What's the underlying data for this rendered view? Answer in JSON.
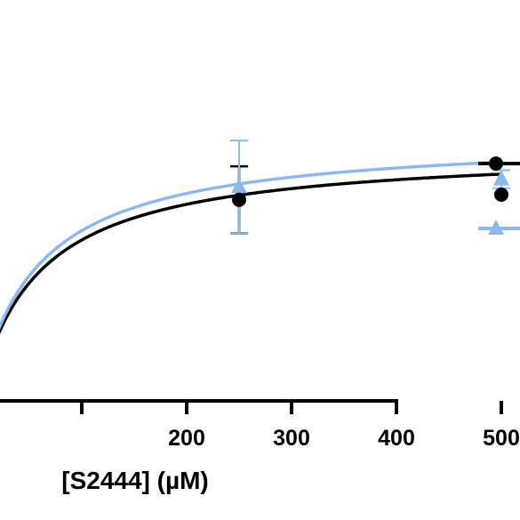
{
  "chart_data": {
    "type": "scatter",
    "xlabel": "[S2444] (µM)",
    "ylabel": "",
    "title": "",
    "xlim": [
      -80,
      520
    ],
    "ylim": [
      0,
      1.5
    ],
    "x_ticks": [
      {
        "value": 100,
        "label": ""
      },
      {
        "value": 200,
        "label": "200"
      },
      {
        "value": 300,
        "label": "300"
      },
      {
        "value": 400,
        "label": "400"
      },
      {
        "value": 500,
        "label": "500"
      }
    ],
    "fit": {
      "vmax": 1.0,
      "km": 80
    },
    "series": [
      {
        "marker": "circle",
        "color": "#000000",
        "points": [
          {
            "x": 250,
            "y": 0.78,
            "err": 0.13
          },
          {
            "x": 500,
            "y": 0.8,
            "err": 0
          }
        ],
        "fit": {
          "vmax": 0.98,
          "km": 57
        }
      },
      {
        "marker": "triangle",
        "color": "#8cb8ec",
        "points": [
          {
            "x": 250,
            "y": 0.83,
            "err": 0.18
          },
          {
            "x": 500,
            "y": 0.86,
            "err": 0.035
          }
        ],
        "fit": {
          "vmax": 1.03,
          "km": 56
        }
      }
    ],
    "legend_position": "right"
  }
}
